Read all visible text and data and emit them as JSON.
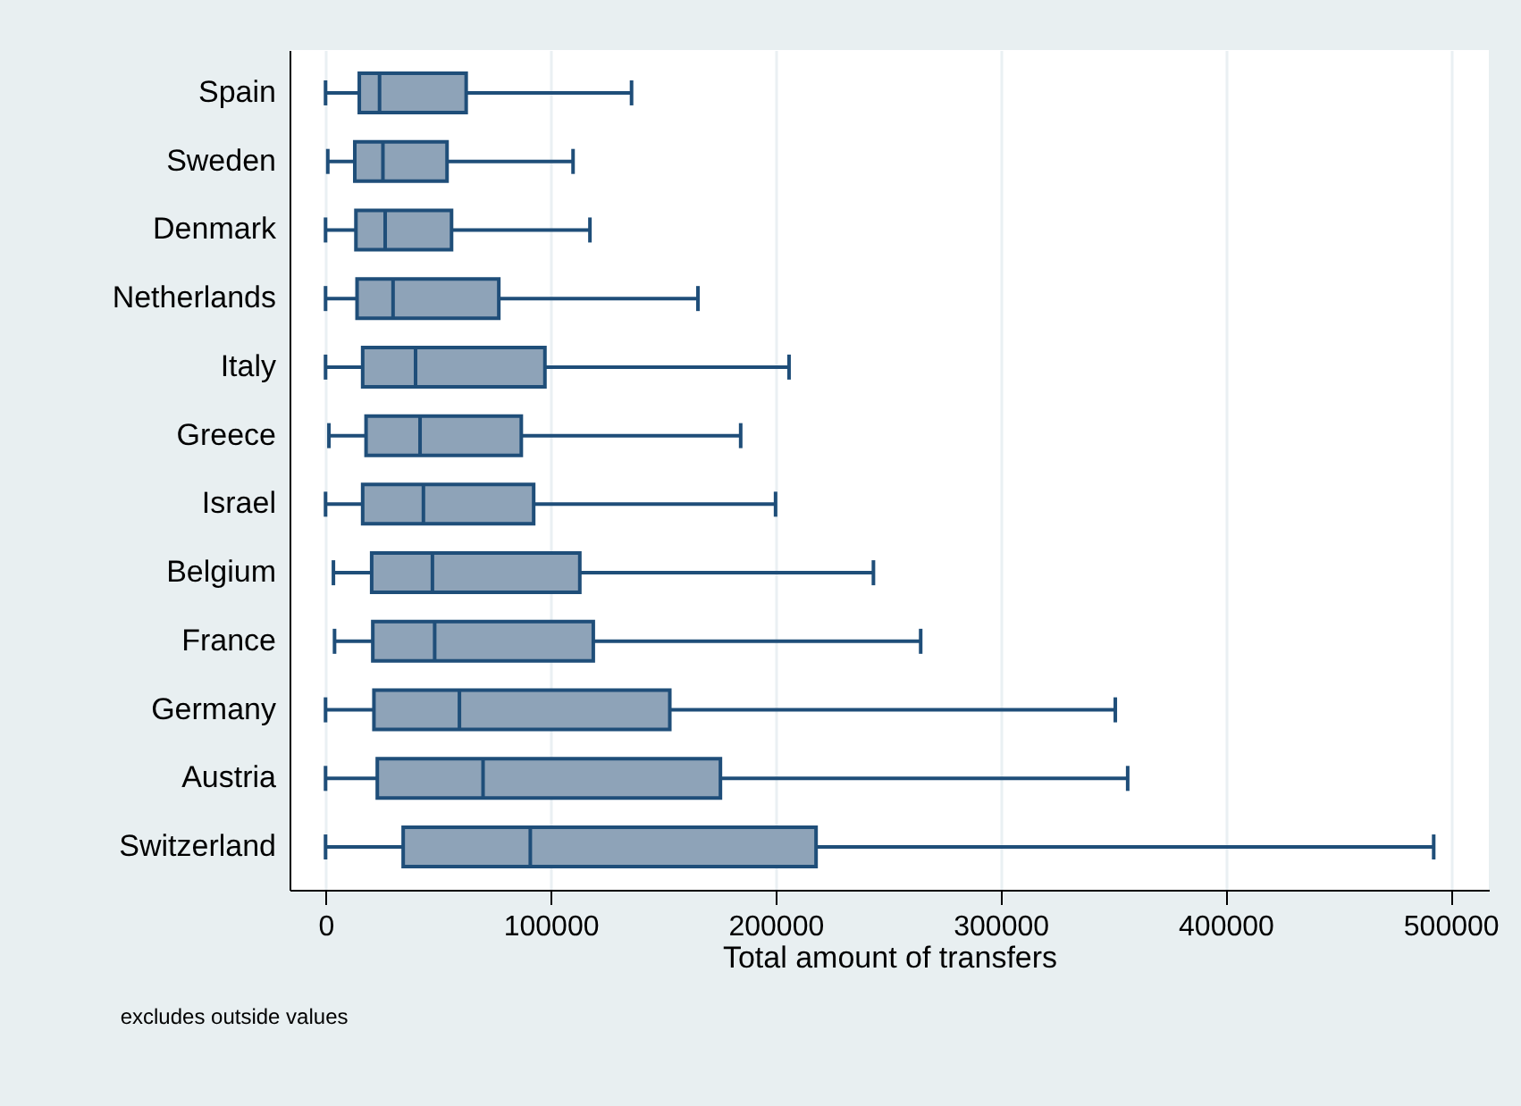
{
  "chart_data": {
    "type": "box",
    "orientation": "horizontal",
    "xlabel": "Total amount of transfers",
    "annotations": [
      "excludes outside values"
    ],
    "categories": [
      "Spain",
      "Sweden",
      "Denmark",
      "Netherlands",
      "Italy",
      "Greece",
      "Israel",
      "Belgium",
      "France",
      "Germany",
      "Austria",
      "Switzerland"
    ],
    "color": "#8ea3b8",
    "boxes": [
      {
        "low": 0,
        "q1": 15000,
        "median": 24000,
        "q3": 62500,
        "high": 136000
      },
      {
        "low": 1000,
        "q1": 13000,
        "median": 25500,
        "q3": 54000,
        "high": 110000
      },
      {
        "low": 0,
        "q1": 13500,
        "median": 26500,
        "q3": 56000,
        "high": 117500
      },
      {
        "low": 0,
        "q1": 14000,
        "median": 30000,
        "q3": 77000,
        "high": 165500
      },
      {
        "low": 0,
        "q1": 16500,
        "median": 40000,
        "q3": 97500,
        "high": 206000
      },
      {
        "low": 1500,
        "q1": 18000,
        "median": 42000,
        "q3": 87000,
        "high": 184500
      },
      {
        "low": 0,
        "q1": 16500,
        "median": 43500,
        "q3": 92500,
        "high": 200000
      },
      {
        "low": 3500,
        "q1": 20500,
        "median": 47500,
        "q3": 113000,
        "high": 243500
      },
      {
        "low": 4000,
        "q1": 21000,
        "median": 48500,
        "q3": 119000,
        "high": 264500
      },
      {
        "low": 0,
        "q1": 21500,
        "median": 59500,
        "q3": 153000,
        "high": 351000
      },
      {
        "low": 0,
        "q1": 23000,
        "median": 70000,
        "q3": 175500,
        "high": 356500
      },
      {
        "low": 0,
        "q1": 34500,
        "median": 91000,
        "q3": 218000,
        "high": 492500
      }
    ],
    "xlim": [
      -16000,
      517000
    ],
    "xticks": [
      0,
      100000,
      200000,
      300000,
      400000,
      500000
    ],
    "grid": "x"
  }
}
